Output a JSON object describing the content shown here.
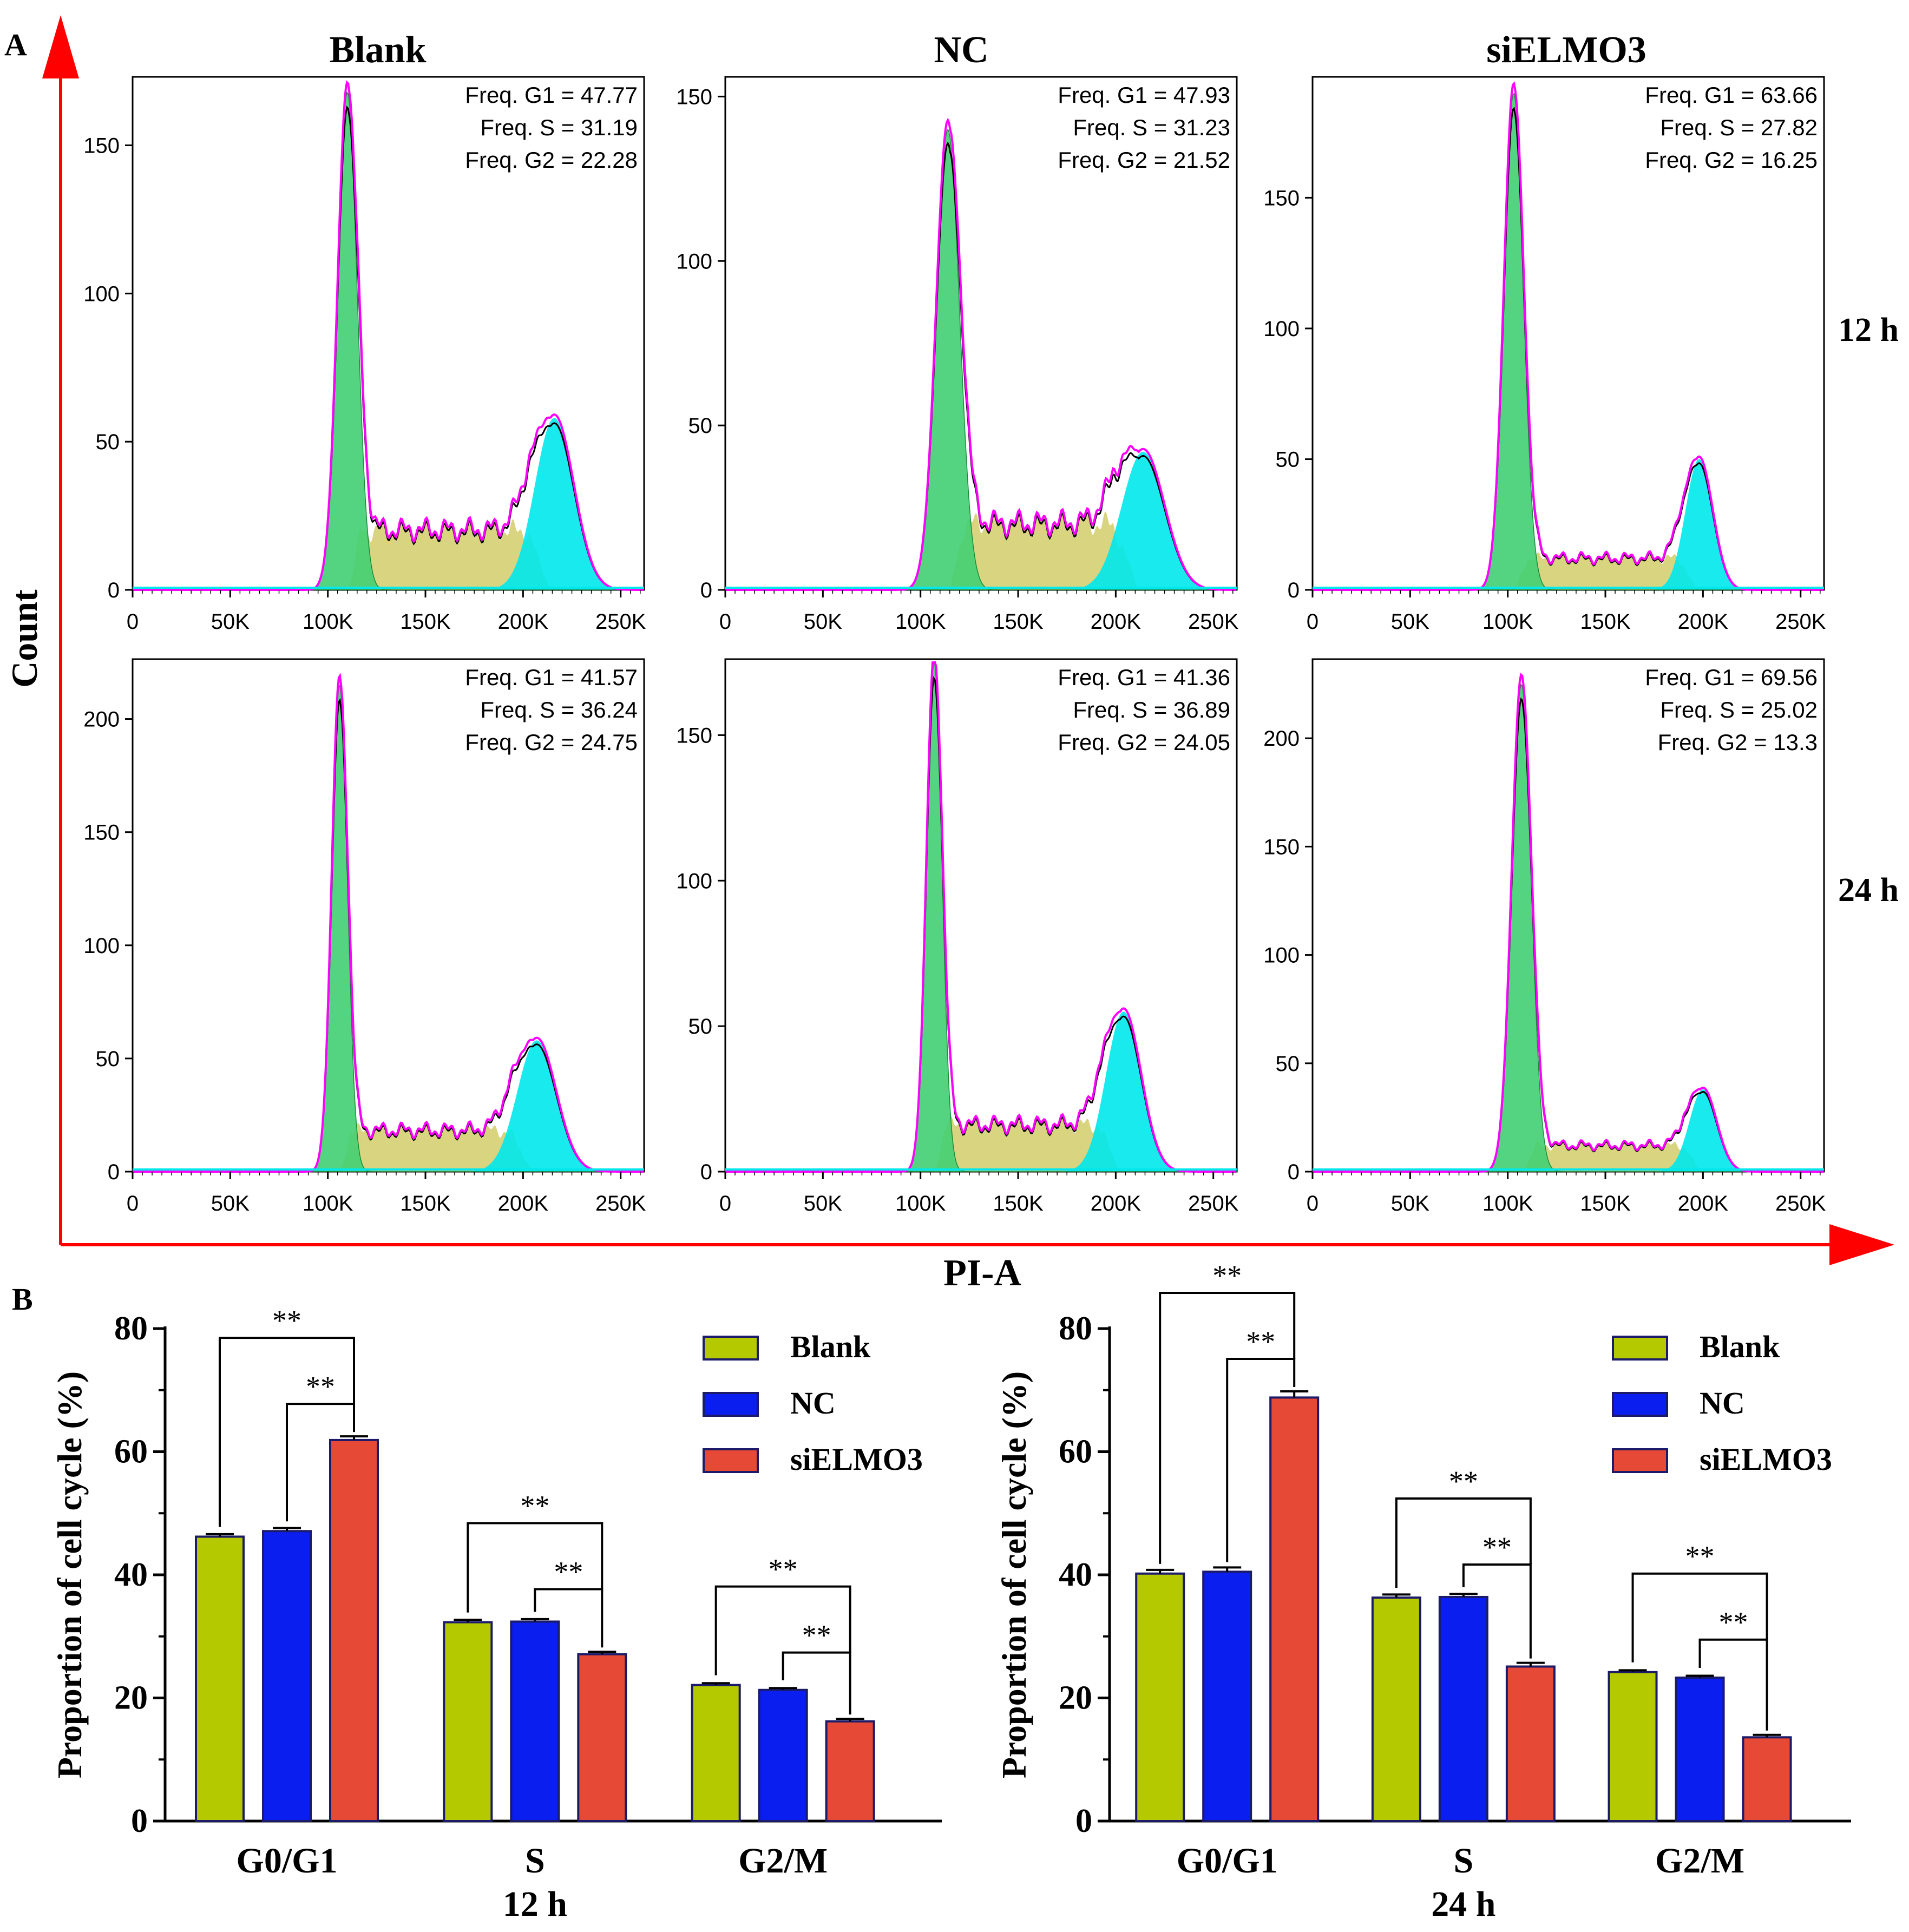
{
  "panel_labels": {
    "a": "A",
    "b": "B"
  },
  "colors": {
    "arrow": "#ff0000",
    "g1_fill": "#41cf72",
    "s_fill": "#d2cd6a",
    "g2_fill": "#00e8ec",
    "envelope": "#ff00ff",
    "data_line": "#000000",
    "bar_blank": "#b5c900",
    "bar_nc": "#0a1ef0",
    "bar_si": "#e64a36",
    "bar_stroke": "#1b1b6a"
  },
  "icons": {
    "arrow": "arrow-icon"
  },
  "flow": {
    "column_titles": [
      "Blank",
      "NC",
      "siELMO3"
    ],
    "row_labels": [
      "12 h",
      "24 h"
    ],
    "y_axis_label": "Count",
    "x_axis_label": "PI-A",
    "x_ticks": [
      "0",
      "50K",
      "100K",
      "150K",
      "200K",
      "250K"
    ],
    "x_tick_values": [
      0,
      50000,
      100000,
      150000,
      200000,
      250000
    ],
    "plots": [
      {
        "row": 0,
        "col": 0,
        "ymax": 172,
        "y_ticks": [
          "0",
          "50",
          "100",
          "150"
        ],
        "y_tick_values": [
          0,
          50,
          100,
          150
        ],
        "stats": [
          "Freq. G1 = 47.77",
          "Freq. S = 31.19",
          "Freq. G2 = 22.28"
        ],
        "g1_mu": 110000,
        "g1_sig": 5000,
        "g1_h": 168,
        "g2_mu": 216000,
        "g2_sig": 10000,
        "g2_h": 58,
        "s_h": 20
      },
      {
        "row": 0,
        "col": 1,
        "ymax": 155,
        "y_ticks": [
          "0",
          "50",
          "100",
          "150"
        ],
        "y_tick_values": [
          0,
          50,
          100,
          150
        ],
        "stats": [
          "Freq. G1 = 47.93",
          "Freq. S = 31.23",
          "Freq. G2 = 21.52"
        ],
        "g1_mu": 114000,
        "g1_sig": 6000,
        "g1_h": 140,
        "g2_mu": 214000,
        "g2_sig": 11000,
        "g2_h": 42,
        "s_h": 20
      },
      {
        "row": 0,
        "col": 2,
        "ymax": 195,
        "y_ticks": [
          "0",
          "50",
          "100",
          "150"
        ],
        "y_tick_values": [
          0,
          50,
          100,
          150
        ],
        "stats": [
          "Freq. G1 = 63.66",
          "Freq. S = 27.82",
          "Freq. G2 = 16.25"
        ],
        "g1_mu": 103000,
        "g1_sig": 5000,
        "g1_h": 190,
        "g2_mu": 198000,
        "g2_sig": 7000,
        "g2_h": 50,
        "s_h": 12
      },
      {
        "row": 1,
        "col": 0,
        "ymax": 225,
        "y_ticks": [
          "0",
          "50",
          "100",
          "150",
          "200"
        ],
        "y_tick_values": [
          0,
          50,
          100,
          150,
          200
        ],
        "stats": [
          "Freq. G1 = 41.57",
          "Freq. S = 36.24",
          "Freq. G2 = 24.75"
        ],
        "g1_mu": 106000,
        "g1_sig": 4000,
        "g1_h": 215,
        "g2_mu": 207000,
        "g2_sig": 10000,
        "g2_h": 58,
        "s_h": 18
      },
      {
        "row": 1,
        "col": 1,
        "ymax": 175,
        "y_ticks": [
          "0",
          "50",
          "100",
          "150"
        ],
        "y_tick_values": [
          0,
          50,
          100,
          150
        ],
        "stats": [
          "Freq. G1 = 41.36",
          "Freq. S = 36.89",
          "Freq. G2 = 24.05"
        ],
        "g1_mu": 107000,
        "g1_sig": 4000,
        "g1_h": 175,
        "g2_mu": 204000,
        "g2_sig": 9000,
        "g2_h": 55,
        "s_h": 16
      },
      {
        "row": 1,
        "col": 2,
        "ymax": 235,
        "y_ticks": [
          "0",
          "50",
          "100",
          "150",
          "200"
        ],
        "y_tick_values": [
          0,
          50,
          100,
          150,
          200
        ],
        "stats": [
          "Freq. G1 = 69.56",
          "Freq. S = 25.02",
          "Freq. G2 = 13.3"
        ],
        "g1_mu": 107000,
        "g1_sig": 5000,
        "g1_h": 225,
        "g2_mu": 200000,
        "g2_sig": 7000,
        "g2_h": 38,
        "s_h": 12
      }
    ]
  },
  "chart_data": [
    {
      "type": "bar",
      "title": "12 h",
      "categories": [
        "G0/G1",
        "S",
        "G2/M"
      ],
      "series": [
        {
          "name": "Blank",
          "values": [
            46.2,
            32.3,
            22.1
          ],
          "errors": [
            0.4,
            0.4,
            0.3
          ]
        },
        {
          "name": "NC",
          "values": [
            47.1,
            32.4,
            21.3
          ],
          "errors": [
            0.5,
            0.4,
            0.3
          ]
        },
        {
          "name": "siELMO3",
          "values": [
            61.9,
            27.1,
            16.2
          ],
          "errors": [
            0.6,
            0.4,
            0.4
          ]
        }
      ],
      "ylabel": "Proportion of cell cycle (%)",
      "xlabel": "12 h",
      "ylim": [
        0,
        80
      ],
      "y_ticks": [
        0,
        20,
        40,
        60,
        80
      ],
      "y_tick_labels": [
        "0",
        "20",
        "40",
        "60",
        "80"
      ],
      "significance": "**",
      "legend_position": "top-right"
    },
    {
      "type": "bar",
      "title": "24 h",
      "categories": [
        "G0/G1",
        "S",
        "G2/M"
      ],
      "series": [
        {
          "name": "Blank",
          "values": [
            40.2,
            36.3,
            24.2
          ],
          "errors": [
            0.6,
            0.5,
            0.3
          ]
        },
        {
          "name": "NC",
          "values": [
            40.5,
            36.4,
            23.3
          ],
          "errors": [
            0.7,
            0.5,
            0.3
          ]
        },
        {
          "name": "siELMO3",
          "values": [
            68.8,
            25.1,
            13.6
          ],
          "errors": [
            1.0,
            0.6,
            0.4
          ]
        }
      ],
      "ylabel": "Proportion of cell cycle (%)",
      "xlabel": "24 h",
      "ylim": [
        0,
        80
      ],
      "y_ticks": [
        0,
        20,
        40,
        60,
        80
      ],
      "y_tick_labels": [
        "0",
        "20",
        "40",
        "60",
        "80"
      ],
      "significance": "**",
      "legend_position": "top-right"
    }
  ]
}
